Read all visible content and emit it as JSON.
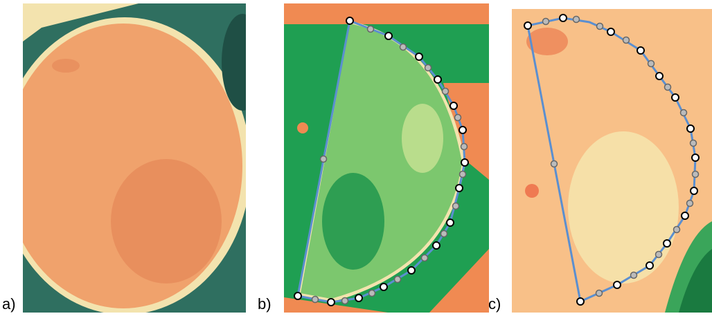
{
  "labels": {
    "a": "a)",
    "b": "b)",
    "c": "c)"
  }
}
